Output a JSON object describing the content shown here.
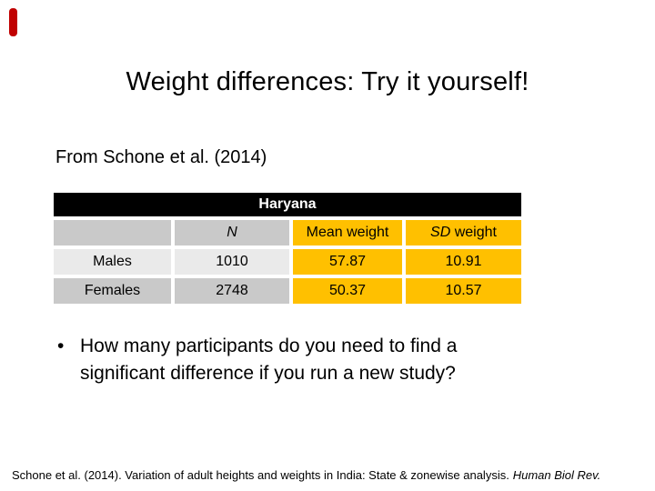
{
  "slide": {
    "title": "Weight differences: Try it yourself!",
    "subtitle": "From Schone et al. (2014)",
    "bullet_char": "•",
    "bullet": "How many participants do you need to find a significant difference if you run a new study?",
    "footer": {
      "citation": "Schone et al. (2014). Variation of adult heights and weights in India: State & zonewise analysis.",
      "journal": "Human Biol Rev."
    }
  },
  "table": {
    "region_header": "Haryana",
    "columns": [
      "",
      "N",
      "Mean weight",
      "SD weight"
    ],
    "sd_label_italic": "SD",
    "sd_label_rest": " weight",
    "rows": [
      {
        "label": "Males",
        "n": "1010",
        "mean_weight": "57.87",
        "sd_weight": "10.91"
      },
      {
        "label": "Females",
        "n": "2748",
        "mean_weight": "50.37",
        "sd_weight": "10.57"
      }
    ]
  },
  "colors": {
    "highlight_gold": "#ffc000",
    "cell_gray_dark": "#c9c9c9",
    "cell_gray_light": "#eaeaea",
    "header_bg": "#000000",
    "header_text": "#ffffff",
    "ribbon_red": "#c00000"
  }
}
